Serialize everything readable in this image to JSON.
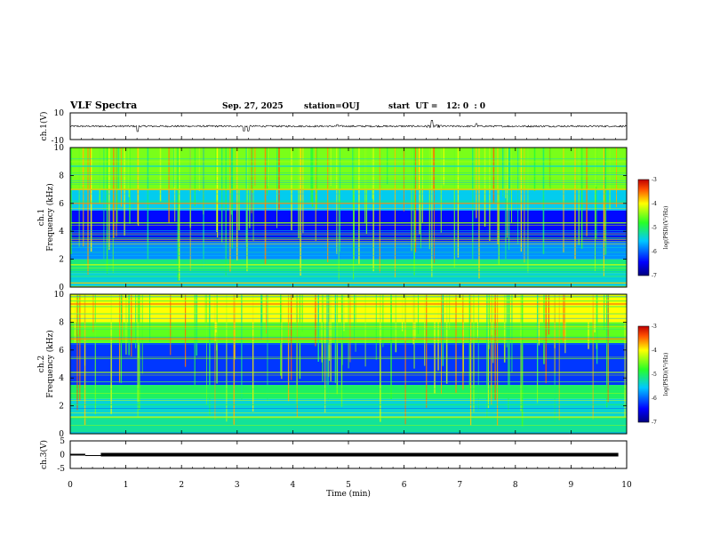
{
  "header": {
    "title": "VLF Spectra",
    "date": "Sep. 27, 2025",
    "station": "station=OUJ",
    "start": "start  UT =   12: 0  : 0"
  },
  "chart_data": [
    {
      "type": "line",
      "name": "ch1-waveform",
      "ylabel": "ch.1(V)",
      "ylim": [
        -10,
        10
      ],
      "y_tick_labels": [
        "10",
        "-10"
      ],
      "xlim": [
        0,
        10
      ],
      "baseline_v": 0,
      "typical_amplitude_v": 1.3,
      "bursts": [
        {
          "t_min": 1.21,
          "v": -4
        },
        {
          "t_min": 3.12,
          "v": -3.5
        },
        {
          "t_min": 3.2,
          "v": -3.5
        },
        {
          "t_min": 4.8,
          "v": 1.2
        },
        {
          "t_min": 6.5,
          "v": 2.5
        },
        {
          "t_min": 7.3,
          "v": 2
        }
      ]
    },
    {
      "type": "heatmap",
      "name": "ch1-spectrogram",
      "ylabel_top": "ch.1",
      "ylabel": "Frequency  (kHz)",
      "xlim": [
        0,
        10
      ],
      "ylim": [
        0,
        10
      ],
      "y_tick_labels": [
        "0",
        "2",
        "4",
        "6",
        "8",
        "10"
      ],
      "colorbar": {
        "label": "log(PSD)(V²/Hz)",
        "range": [
          -7,
          -3
        ],
        "tick_labels": [
          "-3",
          "-4",
          "-5",
          "-6",
          "-7"
        ]
      },
      "regions": [
        {
          "f_from_khz": 0,
          "f_to_khz": 1,
          "log_psd": -5.4
        },
        {
          "f_from_khz": 1,
          "f_to_khz": 2,
          "log_psd": -5.1
        },
        {
          "f_from_khz": 2,
          "f_to_khz": 3.2,
          "log_psd": -5.8
        },
        {
          "f_from_khz": 3.2,
          "f_to_khz": 5.5,
          "log_psd": -6.4
        },
        {
          "f_from_khz": 5.5,
          "f_to_khz": 7,
          "log_psd": -5.5
        },
        {
          "f_from_khz": 7,
          "f_to_khz": 10,
          "log_psd": -4.5
        }
      ],
      "lines": [
        {
          "f_khz": 0.3,
          "log_psd": -3.8
        },
        {
          "f_khz": 1.6,
          "log_psd": -4.2
        },
        {
          "f_khz": 4.6,
          "log_psd": -4.4
        },
        {
          "f_khz": 6.0,
          "log_psd": -3.6
        },
        {
          "f_khz": 7.0,
          "log_psd": -3.8
        }
      ]
    },
    {
      "type": "heatmap",
      "name": "ch2-spectrogram",
      "ylabel_top": "ch.2",
      "ylabel": "Frequency  (kHz)",
      "xlim": [
        0,
        10
      ],
      "ylim": [
        0,
        10
      ],
      "y_tick_labels": [
        "0",
        "2",
        "4",
        "6",
        "8",
        "10"
      ],
      "colorbar": {
        "label": "log(PSD)(V²/Hz)",
        "range": [
          -7,
          -3
        ],
        "tick_labels": [
          "-3",
          "-4",
          "-5",
          "-6",
          "-7"
        ]
      },
      "regions": [
        {
          "f_from_khz": 0,
          "f_to_khz": 1.2,
          "log_psd": -5.2
        },
        {
          "f_from_khz": 1.2,
          "f_to_khz": 2.5,
          "log_psd": -5.4
        },
        {
          "f_from_khz": 2.5,
          "f_to_khz": 3.5,
          "log_psd": -5.0
        },
        {
          "f_from_khz": 3.5,
          "f_to_khz": 6.5,
          "log_psd": -6.2
        },
        {
          "f_from_khz": 6.5,
          "f_to_khz": 8,
          "log_psd": -4.6
        },
        {
          "f_from_khz": 8,
          "f_to_khz": 10,
          "log_psd": -4.0
        }
      ],
      "lines": [
        {
          "f_khz": 1.2,
          "log_psd": -4.2
        },
        {
          "f_khz": 4.4,
          "log_psd": -4.3
        },
        {
          "f_khz": 6.8,
          "log_psd": -3.6
        },
        {
          "f_khz": 9.3,
          "log_psd": -3.5
        }
      ]
    },
    {
      "type": "line",
      "name": "ch3-waveform",
      "ylabel": "ch.3(V)",
      "ylim": [
        -5,
        5
      ],
      "y_tick_labels": [
        "5",
        "0",
        "-5"
      ],
      "xlim": [
        0,
        10
      ],
      "xlabel": "Time  (min)",
      "x_tick_labels": [
        "0",
        "1",
        "2",
        "3",
        "4",
        "5",
        "6",
        "7",
        "8",
        "9",
        "10"
      ],
      "level_v": 0,
      "gap_min": [
        0.27,
        0.55
      ]
    }
  ]
}
